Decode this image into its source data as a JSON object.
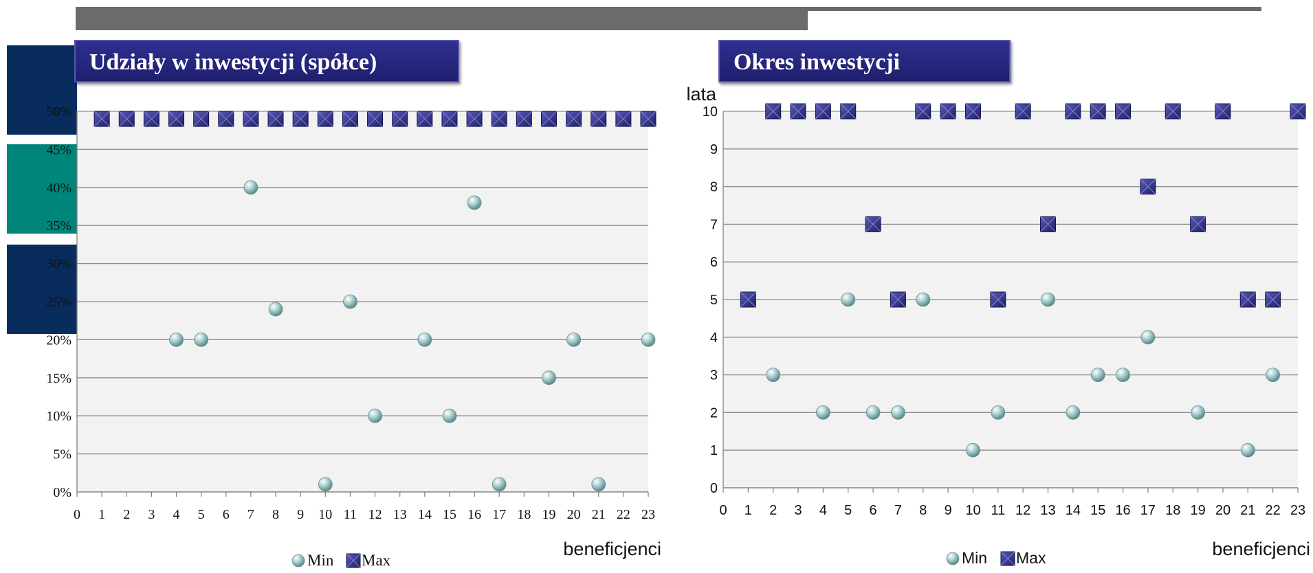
{
  "colors": {
    "plot_bg": "#f2f2f2",
    "grid": "#8c8c8c",
    "min_marker": "#a8cfd0",
    "max_marker": "#2e2e86",
    "title_bg": "#26267a",
    "deco_navy": "#082c5c",
    "deco_teal": "#00857a"
  },
  "chart_data": [
    {
      "type": "scatter",
      "title": "Udziały w inwestycji (spółce)",
      "xlabel": "beneficjenci",
      "ylabel": "",
      "xlim": [
        0,
        23
      ],
      "ylim": [
        0,
        50
      ],
      "x_ticks": [
        "0",
        "1",
        "2",
        "3",
        "4",
        "5",
        "6",
        "7",
        "8",
        "9",
        "10",
        "11",
        "12",
        "13",
        "14",
        "15",
        "16",
        "17",
        "18",
        "19",
        "20",
        "21",
        "22",
        "23"
      ],
      "y_ticks": [
        "0%",
        "5%",
        "10%",
        "15%",
        "20%",
        "25%",
        "30%",
        "35%",
        "40%",
        "45%",
        "50%"
      ],
      "legend": [
        "Min",
        "Max"
      ],
      "legend_position": "bottom",
      "series": [
        {
          "name": "Min",
          "marker": "sphere",
          "points": [
            [
              4,
              20
            ],
            [
              5,
              20
            ],
            [
              7,
              40
            ],
            [
              8,
              24
            ],
            [
              10,
              1
            ],
            [
              11,
              25
            ],
            [
              12,
              10
            ],
            [
              14,
              20
            ],
            [
              15,
              10
            ],
            [
              16,
              38
            ],
            [
              17,
              1
            ],
            [
              19,
              15
            ],
            [
              20,
              20
            ],
            [
              21,
              1
            ],
            [
              23,
              20
            ]
          ]
        },
        {
          "name": "Max",
          "marker": "square",
          "points": [
            [
              1,
              49
            ],
            [
              2,
              49
            ],
            [
              3,
              49
            ],
            [
              4,
              49
            ],
            [
              5,
              49
            ],
            [
              6,
              49
            ],
            [
              7,
              49
            ],
            [
              8,
              49
            ],
            [
              9,
              49
            ],
            [
              10,
              49
            ],
            [
              11,
              49
            ],
            [
              12,
              49
            ],
            [
              13,
              49
            ],
            [
              14,
              49
            ],
            [
              15,
              49
            ],
            [
              16,
              49
            ],
            [
              17,
              49
            ],
            [
              18,
              49
            ],
            [
              19,
              49
            ],
            [
              20,
              49
            ],
            [
              21,
              49
            ],
            [
              22,
              49
            ],
            [
              23,
              49
            ]
          ]
        }
      ]
    },
    {
      "type": "scatter",
      "title": "Okres inwestycji",
      "xlabel": "beneficjenci",
      "ylabel": "lata",
      "xlim": [
        0,
        23
      ],
      "ylim": [
        0,
        10
      ],
      "x_ticks": [
        "0",
        "1",
        "2",
        "3",
        "4",
        "5",
        "6",
        "7",
        "8",
        "9",
        "10",
        "11",
        "12",
        "13",
        "14",
        "15",
        "16",
        "17",
        "18",
        "19",
        "20",
        "21",
        "22",
        "23"
      ],
      "y_ticks": [
        "0",
        "1",
        "2",
        "3",
        "4",
        "5",
        "6",
        "7",
        "8",
        "9",
        "10"
      ],
      "legend": [
        "Min",
        "Max"
      ],
      "legend_position": "bottom",
      "series": [
        {
          "name": "Min",
          "marker": "sphere",
          "points": [
            [
              2,
              3
            ],
            [
              4,
              2
            ],
            [
              5,
              5
            ],
            [
              6,
              2
            ],
            [
              7,
              2
            ],
            [
              8,
              5
            ],
            [
              10,
              1
            ],
            [
              11,
              2
            ],
            [
              13,
              5
            ],
            [
              14,
              2
            ],
            [
              15,
              3
            ],
            [
              16,
              3
            ],
            [
              17,
              4
            ],
            [
              19,
              2
            ],
            [
              21,
              1
            ],
            [
              22,
              3
            ]
          ]
        },
        {
          "name": "Max",
          "marker": "square",
          "points": [
            [
              1,
              5
            ],
            [
              2,
              10
            ],
            [
              3,
              10
            ],
            [
              4,
              10
            ],
            [
              5,
              10
            ],
            [
              6,
              7
            ],
            [
              7,
              5
            ],
            [
              8,
              10
            ],
            [
              9,
              10
            ],
            [
              10,
              10
            ],
            [
              11,
              5
            ],
            [
              12,
              10
            ],
            [
              13,
              7
            ],
            [
              14,
              10
            ],
            [
              15,
              10
            ],
            [
              16,
              10
            ],
            [
              17,
              8
            ],
            [
              18,
              10
            ],
            [
              19,
              7
            ],
            [
              20,
              10
            ],
            [
              21,
              5
            ],
            [
              22,
              5
            ],
            [
              23,
              10
            ]
          ]
        }
      ]
    }
  ]
}
